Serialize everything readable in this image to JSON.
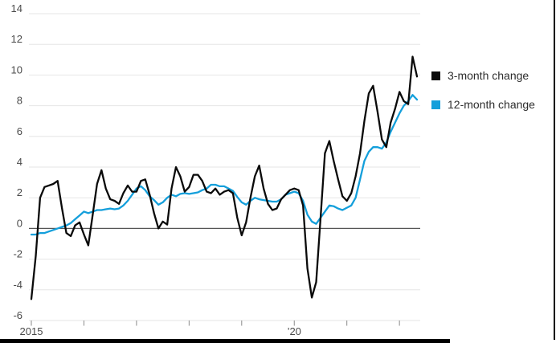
{
  "chart_data": {
    "type": "line",
    "x_start": "2015-01",
    "x_interval": "monthly",
    "x_axis": {
      "tick_years": [
        2015,
        2016,
        2017,
        2018,
        2019,
        2020,
        2021,
        2022
      ],
      "tick_labels": [
        "2015",
        "",
        "",
        "",
        "",
        "’20",
        "",
        ""
      ]
    },
    "y_axis": {
      "min": -6,
      "max": 14,
      "step": 2,
      "tick_labels": [
        "14",
        "12",
        "10",
        "8",
        "6",
        "4",
        "2",
        "0",
        "-2",
        "-4",
        "-6"
      ]
    },
    "grid": "horizontal",
    "legend_position": "right",
    "colors": {
      "gridline": "#e6e6e6",
      "zero_line": "#555555",
      "axis_text": "#4a4a4a",
      "tick": "#8a8a8a"
    },
    "series": [
      {
        "name": "3-month change",
        "color": "#0a0a0a",
        "values": [
          -4.6,
          -1.8,
          2,
          2.7,
          2.8,
          2.9,
          3.1,
          1.3,
          -0.3,
          -0.5,
          0.2,
          0.4,
          -0.4,
          -1.1,
          0.9,
          2.9,
          3.8,
          2.6,
          1.9,
          1.8,
          1.6,
          2.3,
          2.8,
          2.4,
          2.4,
          3.1,
          3.2,
          2.2,
          1,
          0,
          0.45,
          0.25,
          2.6,
          4,
          3.4,
          2.4,
          2.7,
          3.5,
          3.5,
          3.1,
          2.4,
          2.3,
          2.6,
          2.2,
          2.4,
          2.5,
          2.3,
          0.7,
          -0.45,
          0.4,
          2,
          3.4,
          4.1,
          2.6,
          1.6,
          1.2,
          1.3,
          1.9,
          2.2,
          2.5,
          2.6,
          2.5,
          1.5,
          -2.6,
          -4.5,
          -3.5,
          0.7,
          4.9,
          5.7,
          4.4,
          3.2,
          2.1,
          1.8,
          2.3,
          3.4,
          4.9,
          7,
          8.8,
          9.3,
          7.6,
          5.8,
          5.3,
          6.9,
          7.8,
          8.9,
          8.3,
          8.1,
          11.2,
          9.9
        ]
      },
      {
        "name": "12-month change",
        "color": "#149fdb",
        "values": [
          -0.4,
          -0.4,
          -0.3,
          -0.3,
          -0.2,
          -0.1,
          0,
          0.1,
          0.2,
          0.35,
          0.6,
          0.85,
          1.1,
          1,
          1.1,
          1.2,
          1.2,
          1.25,
          1.3,
          1.25,
          1.3,
          1.5,
          1.8,
          2.2,
          2.6,
          2.75,
          2.5,
          2.1,
          1.85,
          1.55,
          1.7,
          2,
          2.2,
          2.1,
          2.25,
          2.3,
          2.25,
          2.3,
          2.35,
          2.5,
          2.6,
          2.85,
          2.85,
          2.75,
          2.75,
          2.6,
          2.45,
          2.05,
          1.7,
          1.55,
          1.8,
          2,
          1.9,
          1.85,
          1.8,
          1.75,
          1.75,
          1.9,
          2.2,
          2.3,
          2.4,
          2.3,
          1.8,
          0.9,
          0.45,
          0.3,
          0.7,
          1.1,
          1.5,
          1.45,
          1.3,
          1.2,
          1.35,
          1.5,
          2,
          3.2,
          4.4,
          5,
          5.3,
          5.3,
          5.2,
          5.6,
          6.3,
          6.9,
          7.5,
          8,
          8.3,
          8.7,
          8.4
        ]
      }
    ]
  }
}
